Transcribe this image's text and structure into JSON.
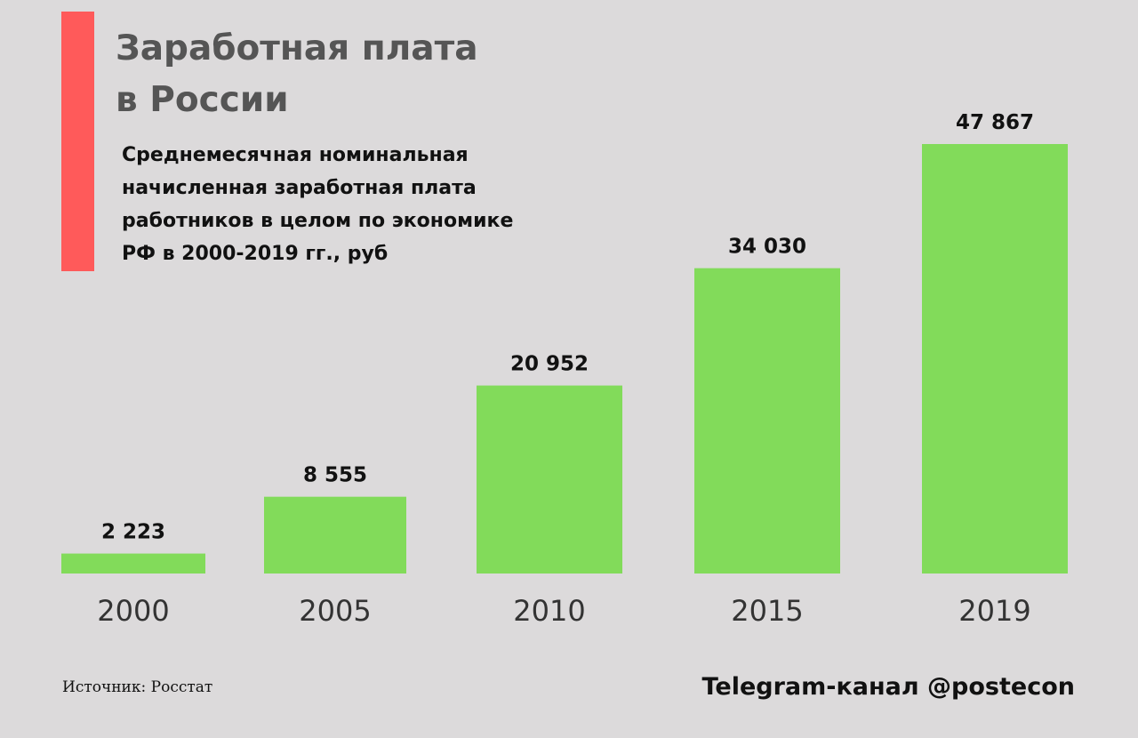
{
  "colors": {
    "background": "#dcdadb",
    "accent": "#ff5a5a",
    "bar": "#82db5a",
    "title": "#555555",
    "text": "#111111"
  },
  "title_lines": [
    "Заработная плата",
    "в России"
  ],
  "subtitle_lines": [
    "Среднемесячная номинальная",
    "начисленная заработная плата",
    "работников в целом по экономике",
    "РФ в 2000-2019 гг., руб"
  ],
  "source": "Источник: Росстат",
  "credit": "Telegram-канал @postecon",
  "chart_data": {
    "type": "bar",
    "categories": [
      "2000",
      "2005",
      "2010",
      "2015",
      "2019"
    ],
    "values": [
      2223,
      8555,
      20952,
      34030,
      47867
    ],
    "value_labels": [
      "2 223",
      "8 555",
      "20 952",
      "34 030",
      "47 867"
    ],
    "title": "Заработная плата в России",
    "subtitle": "Среднемесячная номинальная начисленная заработная плата работников в целом по экономике РФ в 2000-2019 гг., руб",
    "xlabel": "",
    "ylabel": "",
    "grid": false,
    "y_axis_shown": false
  }
}
